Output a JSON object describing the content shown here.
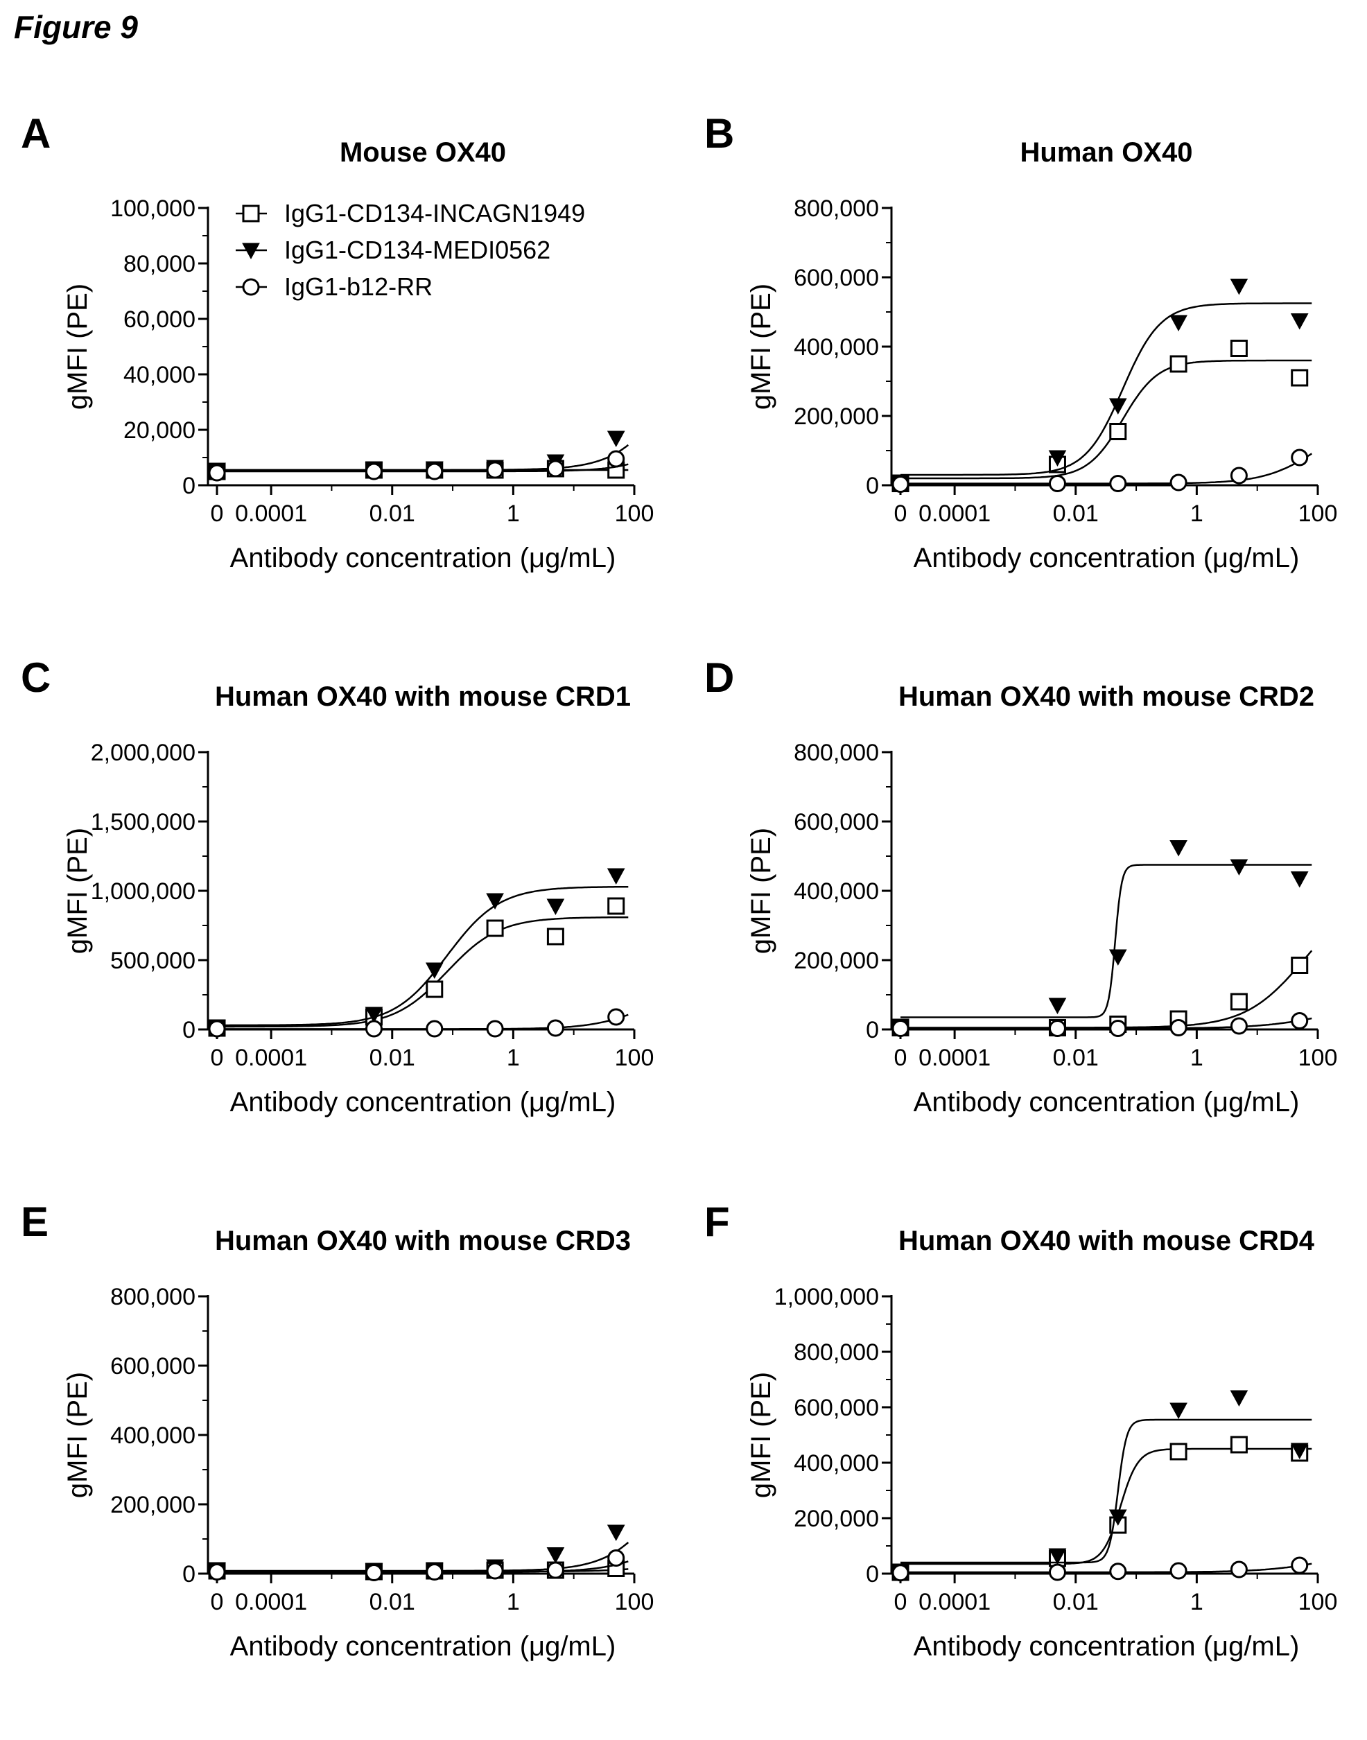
{
  "figure_title": "Figure 9",
  "chart_data": [
    {
      "type": "scatter",
      "letter": "A",
      "title": "Mouse OX40",
      "xlabel": "Antibody concentration (μg/mL)",
      "ylabel": "gMFI (PE)",
      "ylim": [
        0,
        100000
      ],
      "yticks": [
        "0",
        "20,000",
        "40,000",
        "60,000",
        "80,000",
        "100,000"
      ],
      "xticks": [
        "0",
        "0.0001",
        "0.01",
        "1",
        "100"
      ],
      "legend": true,
      "series": [
        {
          "name": "IgG1-CD134-INCAGN1949",
          "marker": "square",
          "points": [
            [
              0,
              5000
            ],
            [
              0.005,
              5500
            ],
            [
              0.05,
              5500
            ],
            [
              0.5,
              5500
            ],
            [
              5,
              6000
            ],
            [
              50,
              5500
            ]
          ],
          "fit": {
            "bottom": 5500,
            "top": 5500,
            "ec50": 1,
            "hill": 1
          }
        },
        {
          "name": "IgG1-CD134-MEDI0562",
          "marker": "triangle",
          "points": [
            [
              0,
              5500
            ],
            [
              0.005,
              5500
            ],
            [
              0.05,
              6000
            ],
            [
              0.5,
              6500
            ],
            [
              5,
              8500
            ],
            [
              50,
              17000
            ]
          ],
          "fit": {
            "bottom": 5500,
            "top": 60000,
            "ec50": 400,
            "hill": 1
          }
        },
        {
          "name": "IgG1-b12-RR",
          "marker": "circle",
          "points": [
            [
              0,
              4500
            ],
            [
              0.005,
              5000
            ],
            [
              0.05,
              5000
            ],
            [
              0.5,
              5500
            ],
            [
              5,
              6000
            ],
            [
              50,
              9500
            ]
          ],
          "fit": {
            "bottom": 5000,
            "top": 40000,
            "ec50": 1000,
            "hill": 1
          }
        }
      ]
    },
    {
      "type": "scatter",
      "letter": "B",
      "title": "Human OX40",
      "xlabel": "Antibody concentration (μg/mL)",
      "ylabel": "gMFI (PE)",
      "ylim": [
        0,
        800000
      ],
      "yticks": [
        "0",
        "200,000",
        "400,000",
        "600,000",
        "800,000"
      ],
      "xticks": [
        "0",
        "0.0001",
        "0.01",
        "1",
        "100"
      ],
      "legend": false,
      "series": [
        {
          "name": "IgG1-CD134-INCAGN1949",
          "marker": "square",
          "points": [
            [
              0,
              5000
            ],
            [
              0.005,
              60000
            ],
            [
              0.05,
              155000
            ],
            [
              0.5,
              350000
            ],
            [
              5,
              395000
            ],
            [
              50,
              310000
            ]
          ],
          "fit": {
            "bottom": 20000,
            "top": 360000,
            "ec50": 0.06,
            "hill": 1.5
          }
        },
        {
          "name": "IgG1-CD134-MEDI0562",
          "marker": "triangle",
          "points": [
            [
              0,
              10000
            ],
            [
              0.005,
              80000
            ],
            [
              0.05,
              230000
            ],
            [
              0.5,
              470000
            ],
            [
              5,
              575000
            ],
            [
              50,
              475000
            ]
          ],
          "fit": {
            "bottom": 30000,
            "top": 525000,
            "ec50": 0.06,
            "hill": 1.4
          }
        },
        {
          "name": "IgG1-b12-RR",
          "marker": "circle",
          "points": [
            [
              0,
              3000
            ],
            [
              0.005,
              5000
            ],
            [
              0.05,
              5000
            ],
            [
              0.5,
              8000
            ],
            [
              5,
              28000
            ],
            [
              50,
              80000
            ]
          ],
          "fit": {
            "bottom": 5000,
            "top": 200000,
            "ec50": 100,
            "hill": 1
          }
        }
      ]
    },
    {
      "type": "scatter",
      "letter": "C",
      "title": "Human OX40 with mouse CRD1",
      "xlabel": "Antibody concentration (μg/mL)",
      "ylabel": "gMFI (PE)",
      "ylim": [
        0,
        2000000
      ],
      "yticks": [
        "0",
        "500,000",
        "1,000,000",
        "1,500,000",
        "2,000,000"
      ],
      "xticks": [
        "0",
        "0.0001",
        "0.01",
        "1",
        "100"
      ],
      "legend": false,
      "series": [
        {
          "name": "IgG1-CD134-INCAGN1949",
          "marker": "square",
          "points": [
            [
              0,
              10000
            ],
            [
              0.005,
              90000
            ],
            [
              0.05,
              290000
            ],
            [
              0.5,
              730000
            ],
            [
              5,
              670000
            ],
            [
              50,
              890000
            ]
          ],
          "fit": {
            "bottom": 20000,
            "top": 810000,
            "ec50": 0.08,
            "hill": 1
          }
        },
        {
          "name": "IgG1-CD134-MEDI0562",
          "marker": "triangle",
          "points": [
            [
              0,
              15000
            ],
            [
              0.005,
              110000
            ],
            [
              0.05,
              430000
            ],
            [
              0.5,
              930000
            ],
            [
              5,
              890000
            ],
            [
              50,
              1110000
            ]
          ],
          "fit": {
            "bottom": 30000,
            "top": 1030000,
            "ec50": 0.08,
            "hill": 1
          }
        },
        {
          "name": "IgG1-b12-RR",
          "marker": "circle",
          "points": [
            [
              0,
              5000
            ],
            [
              0.005,
              5000
            ],
            [
              0.05,
              5000
            ],
            [
              0.5,
              5000
            ],
            [
              5,
              10000
            ],
            [
              50,
              90000
            ]
          ],
          "fit": {
            "bottom": 3000,
            "top": 300000,
            "ec50": 150,
            "hill": 1
          }
        }
      ]
    },
    {
      "type": "scatter",
      "letter": "D",
      "title": "Human OX40 with mouse CRD2",
      "xlabel": "Antibody concentration (μg/mL)",
      "ylabel": "gMFI (PE)",
      "ylim": [
        0,
        800000
      ],
      "yticks": [
        "0",
        "200,000",
        "400,000",
        "600,000",
        "800,000"
      ],
      "xticks": [
        "0",
        "0.0001",
        "0.01",
        "1",
        "100"
      ],
      "legend": false,
      "series": [
        {
          "name": "IgG1-CD134-INCAGN1949",
          "marker": "square",
          "points": [
            [
              0,
              5000
            ],
            [
              0.005,
              5000
            ],
            [
              0.05,
              15000
            ],
            [
              0.5,
              30000
            ],
            [
              5,
              80000
            ],
            [
              50,
              185000
            ]
          ],
          "fit": {
            "bottom": 5000,
            "top": 400000,
            "ec50": 60,
            "hill": 0.9
          }
        },
        {
          "name": "IgG1-CD134-MEDI0562",
          "marker": "triangle",
          "points": [
            [
              0,
              10000
            ],
            [
              0.005,
              70000
            ],
            [
              0.05,
              210000
            ],
            [
              0.5,
              525000
            ],
            [
              5,
              470000
            ],
            [
              50,
              435000
            ]
          ],
          "fit": {
            "bottom": 35000,
            "top": 475000,
            "ec50": 0.045,
            "hill": 8
          }
        },
        {
          "name": "IgG1-b12-RR",
          "marker": "circle",
          "points": [
            [
              0,
              3000
            ],
            [
              0.005,
              3000
            ],
            [
              0.05,
              3000
            ],
            [
              0.5,
              5000
            ],
            [
              5,
              10000
            ],
            [
              50,
              25000
            ]
          ],
          "fit": {
            "bottom": 3000,
            "top": 80000,
            "ec50": 150,
            "hill": 0.8
          }
        }
      ]
    },
    {
      "type": "scatter",
      "letter": "E",
      "title": "Human OX40 with mouse CRD3",
      "xlabel": "Antibody concentration (μg/mL)",
      "ylabel": "gMFI (PE)",
      "ylim": [
        0,
        800000
      ],
      "yticks": [
        "0",
        "200,000",
        "400,000",
        "600,000",
        "800,000"
      ],
      "xticks": [
        "0",
        "0.0001",
        "0.01",
        "1",
        "100"
      ],
      "legend": false,
      "series": [
        {
          "name": "IgG1-CD134-INCAGN1949",
          "marker": "square",
          "points": [
            [
              0,
              8000
            ],
            [
              0.005,
              6000
            ],
            [
              0.05,
              8000
            ],
            [
              0.5,
              10000
            ],
            [
              5,
              10000
            ],
            [
              50,
              15000
            ]
          ],
          "fit": {
            "bottom": 6000,
            "top": 40000,
            "ec50": 300,
            "hill": 1
          }
        },
        {
          "name": "IgG1-CD134-MEDI0562",
          "marker": "triangle",
          "points": [
            [
              0,
              10000
            ],
            [
              0.005,
              8000
            ],
            [
              0.05,
              10000
            ],
            [
              0.5,
              20000
            ],
            [
              5,
              55000
            ],
            [
              50,
              120000
            ]
          ],
          "fit": {
            "bottom": 8000,
            "top": 400000,
            "ec50": 300,
            "hill": 1
          }
        },
        {
          "name": "IgG1-b12-RR",
          "marker": "circle",
          "points": [
            [
              0,
              5000
            ],
            [
              0.005,
              3000
            ],
            [
              0.05,
              5000
            ],
            [
              0.5,
              8000
            ],
            [
              5,
              10000
            ],
            [
              50,
              45000
            ]
          ],
          "fit": {
            "bottom": 5000,
            "top": 150000,
            "ec50": 300,
            "hill": 1
          }
        }
      ]
    },
    {
      "type": "scatter",
      "letter": "F",
      "title": "Human OX40 with mouse CRD4",
      "xlabel": "Antibody concentration (μg/mL)",
      "ylabel": "gMFI (PE)",
      "ylim": [
        0,
        1000000
      ],
      "yticks": [
        "0",
        "200,000",
        "400,000",
        "600,000",
        "800,000",
        "1,000,000"
      ],
      "xticks": [
        "0",
        "0.0001",
        "0.01",
        "1",
        "100"
      ],
      "legend": false,
      "series": [
        {
          "name": "IgG1-CD134-INCAGN1949",
          "marker": "square",
          "points": [
            [
              0,
              5000
            ],
            [
              0.005,
              55000
            ],
            [
              0.05,
              175000
            ],
            [
              0.5,
              440000
            ],
            [
              5,
              465000
            ],
            [
              50,
              435000
            ]
          ],
          "fit": {
            "bottom": 35000,
            "top": 450000,
            "ec50": 0.055,
            "hill": 3
          }
        },
        {
          "name": "IgG1-CD134-MEDI0562",
          "marker": "triangle",
          "points": [
            [
              0,
              10000
            ],
            [
              0.005,
              65000
            ],
            [
              0.05,
              205000
            ],
            [
              0.5,
              590000
            ],
            [
              5,
              635000
            ],
            [
              50,
              445000
            ]
          ],
          "fit": {
            "bottom": 40000,
            "top": 555000,
            "ec50": 0.05,
            "hill": 6
          }
        },
        {
          "name": "IgG1-b12-RR",
          "marker": "circle",
          "points": [
            [
              0,
              3000
            ],
            [
              0.005,
              5000
            ],
            [
              0.05,
              8000
            ],
            [
              0.5,
              10000
            ],
            [
              5,
              15000
            ],
            [
              50,
              30000
            ]
          ],
          "fit": {
            "bottom": 5000,
            "top": 100000,
            "ec50": 200,
            "hill": 0.8
          }
        }
      ]
    }
  ]
}
